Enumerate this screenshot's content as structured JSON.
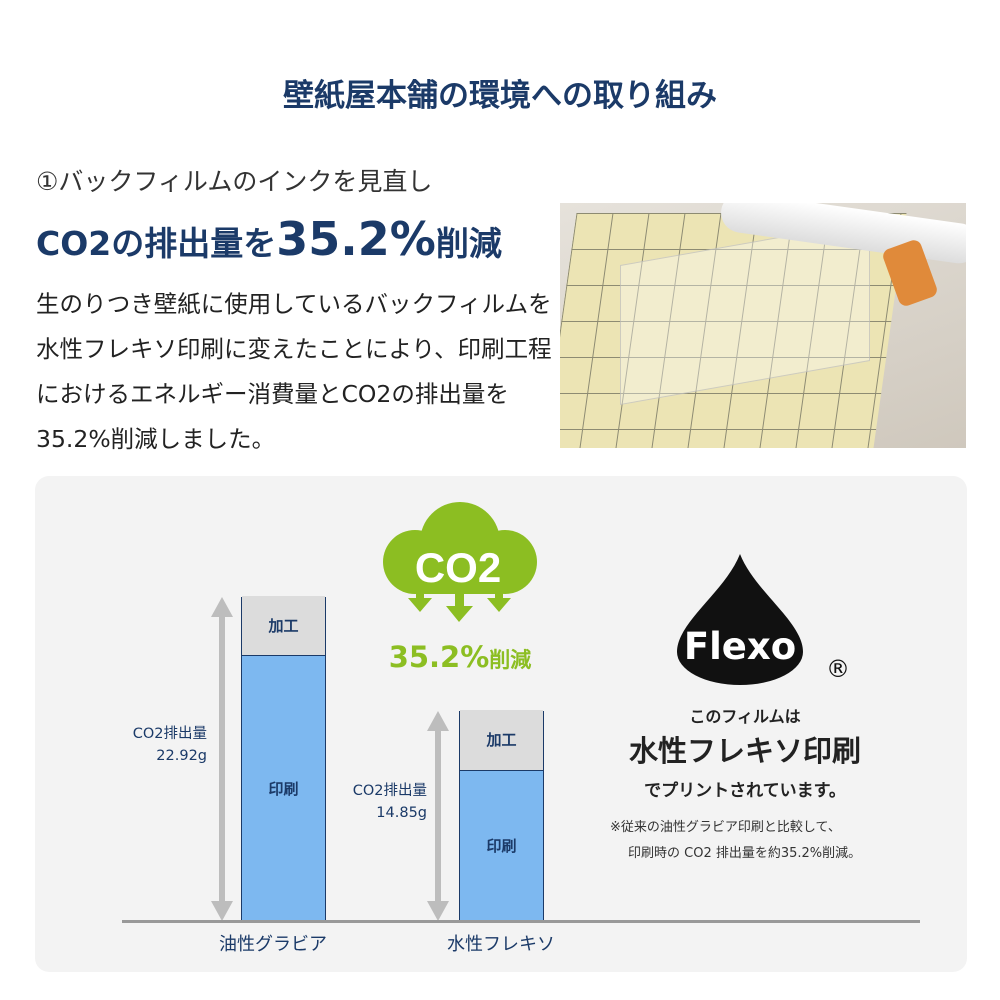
{
  "title": "壁紙屋本舗の環境への取り組み",
  "section": {
    "subtitle": "①バックフィルムのインクを見直し",
    "headline_pre": "CO2の排出量を",
    "headline_value": "35.2%",
    "headline_post": "削減",
    "body": "生のりつき壁紙に使用しているバックフィルムを水性フレキソ印刷に変えたことにより、印刷工程におけるエネルギー消費量とCO2の排出量を35.2%削減しました。"
  },
  "infographic": {
    "cloud_label": "CO2",
    "reduction_value": "35.2%",
    "reduction_suffix": "削減",
    "logo_text": "Flexo",
    "registered_mark": "®",
    "line1": "このフィルムは",
    "line2": "水性フレキソ印刷",
    "line3": "でプリントされています。",
    "note1": "※従来の油性グラビア印刷と比較して、",
    "note2": "印刷時の CO2 排出量を約35.2%削減。",
    "colors": {
      "navy": "#1b3a68",
      "green": "#8cbe22",
      "print_blue": "#7db8f0",
      "process_gray": "#dcdcdc"
    }
  },
  "chart_data": {
    "type": "bar",
    "stacked": true,
    "categories": [
      "油性グラビア",
      "水性フレキソ"
    ],
    "series": [
      {
        "name": "印刷",
        "values": [
          18.67,
          10.55
        ]
      },
      {
        "name": "加工",
        "values": [
          4.25,
          4.3
        ]
      }
    ],
    "totals": [
      22.92,
      14.85
    ],
    "total_labels": [
      [
        "CO2排出量",
        "22.92g"
      ],
      [
        "CO2排出量",
        "14.85g"
      ]
    ],
    "ylim": [
      0,
      22.92
    ],
    "grid": false
  }
}
